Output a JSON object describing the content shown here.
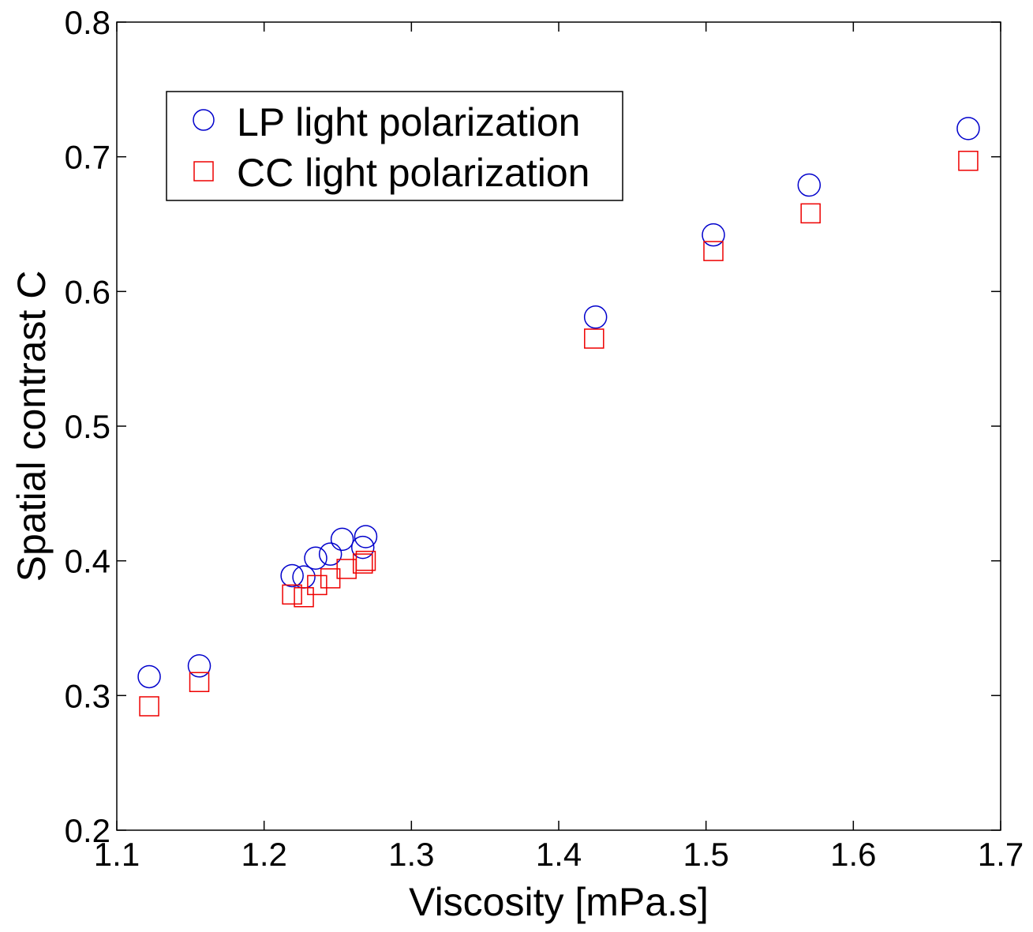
{
  "chart_data": {
    "type": "scatter",
    "title": "",
    "xlabel": "Viscosity [mPa.s]",
    "ylabel": "Spatial contrast C",
    "xlim": [
      1.1,
      1.7
    ],
    "ylim": [
      0.2,
      0.8
    ],
    "xticks": [
      1.1,
      1.2,
      1.3,
      1.4,
      1.5,
      1.6,
      1.7
    ],
    "yticks": [
      0.2,
      0.3,
      0.4,
      0.5,
      0.6,
      0.7,
      0.8
    ],
    "xtick_labels": [
      "1.1",
      "1.2",
      "1.3",
      "1.4",
      "1.5",
      "1.6",
      "1.7"
    ],
    "ytick_labels": [
      "0.2",
      "0.3",
      "0.4",
      "0.5",
      "0.6",
      "0.7",
      "0.8"
    ],
    "grid": false,
    "legend_position": "top-left",
    "series": [
      {
        "name": "LP light polarization",
        "marker": "circle",
        "color": "#0000cc",
        "x": [
          1.122,
          1.156,
          1.219,
          1.227,
          1.235,
          1.245,
          1.253,
          1.267,
          1.269,
          1.425,
          1.505,
          1.57,
          1.678
        ],
        "y": [
          0.314,
          0.322,
          0.389,
          0.388,
          0.402,
          0.405,
          0.416,
          0.41,
          0.418,
          0.581,
          0.642,
          0.679,
          0.721
        ]
      },
      {
        "name": "CC light polarization",
        "marker": "square",
        "color": "#ee0000",
        "x": [
          1.122,
          1.156,
          1.219,
          1.227,
          1.236,
          1.245,
          1.256,
          1.267,
          1.269,
          1.424,
          1.505,
          1.571,
          1.678
        ],
        "y": [
          0.292,
          0.31,
          0.375,
          0.373,
          0.382,
          0.387,
          0.394,
          0.398,
          0.4,
          0.565,
          0.63,
          0.658,
          0.697
        ]
      }
    ]
  }
}
